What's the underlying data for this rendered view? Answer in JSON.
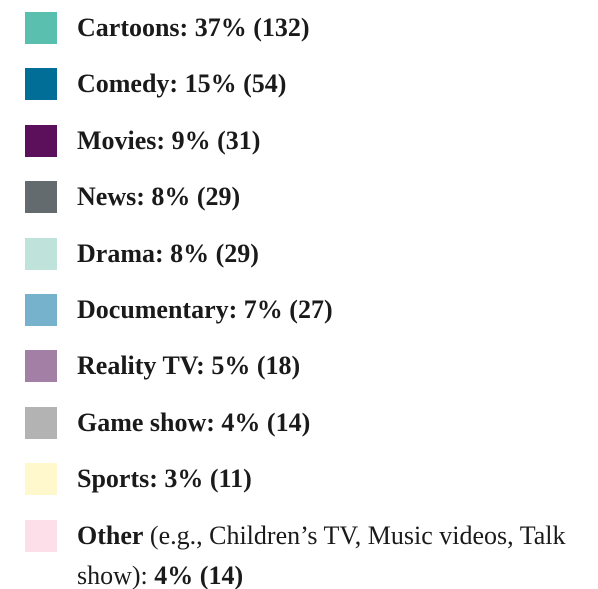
{
  "legend": {
    "items": [
      {
        "label": "Cartoons: 37% (132)",
        "color": "#5bbfb0"
      },
      {
        "label": "Comedy: 15% (54)",
        "color": "#006e96"
      },
      {
        "label": "Movies: 9% (31)",
        "color": "#5c0f5a"
      },
      {
        "label": "News: 8% (29)",
        "color": "#636b6e"
      },
      {
        "label": "Drama: 8% (29)",
        "color": "#bfe3db"
      },
      {
        "label": "Documentary: 7% (27)",
        "color": "#76b2cc"
      },
      {
        "label": "Reality TV: 5% (18)",
        "color": "#a37fa6"
      },
      {
        "label": "Game show: 4% (14)",
        "color": "#b3b3b3"
      },
      {
        "label": "Sports: 3% (11)",
        "color": "#fff8cc"
      },
      {
        "label": "Other",
        "note": "(e.g., Children’s TV, Music videos, Talk show):",
        "value": "4% (14)",
        "color": "#fcdfe9"
      }
    ]
  }
}
